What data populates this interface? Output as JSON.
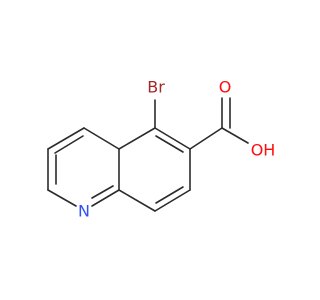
{
  "atoms": {
    "bromine": "Br",
    "carbonyl_oxygen": "O",
    "hydroxyl": "OH",
    "nitrogen": "N"
  }
}
